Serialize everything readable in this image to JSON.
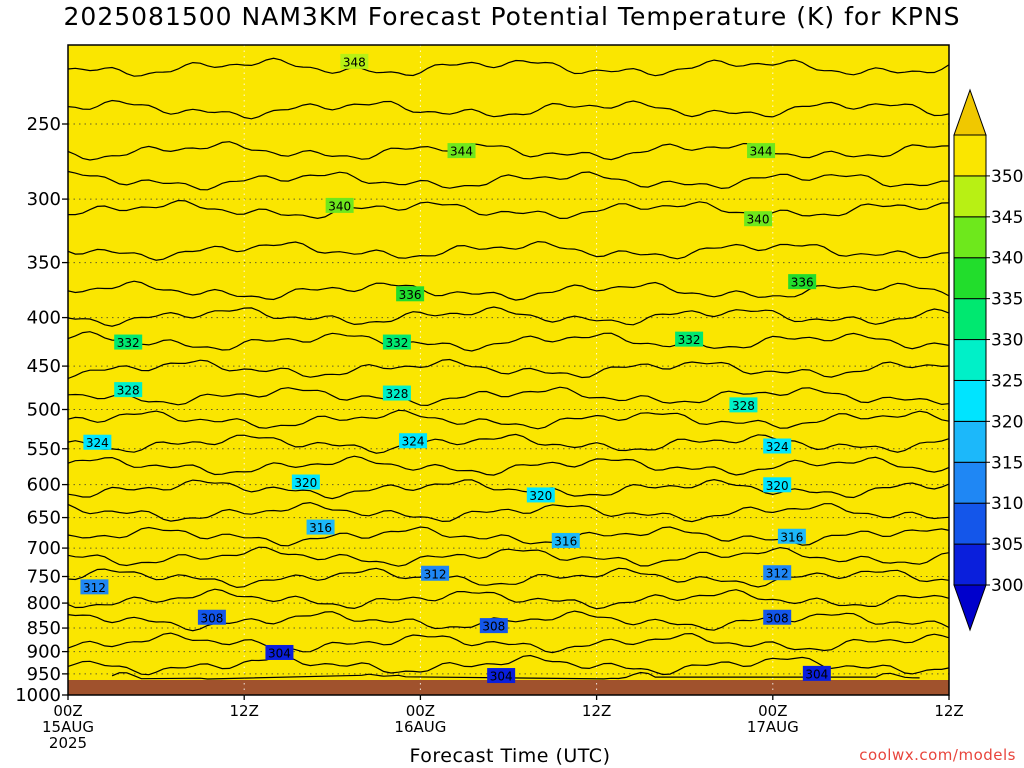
{
  "chart_data": {
    "type": "heatmap",
    "title": "2025081500 NAM3KM Forecast Potential Temperature (K) for KPNS",
    "xlabel": "Forecast Time (UTC)",
    "ylabel": "",
    "credit": "coolwx.com/models",
    "x_ticks": [
      {
        "hour": 0,
        "lines": [
          "00Z",
          "15AUG",
          "2025"
        ]
      },
      {
        "hour": 12,
        "lines": [
          "12Z"
        ]
      },
      {
        "hour": 24,
        "lines": [
          "00Z",
          "16AUG"
        ]
      },
      {
        "hour": 36,
        "lines": [
          "12Z"
        ]
      },
      {
        "hour": 48,
        "lines": [
          "00Z",
          "17AUG"
        ]
      },
      {
        "hour": 60,
        "lines": [
          "12Z"
        ]
      }
    ],
    "xlim": [
      0,
      60
    ],
    "y_scale": "log-pressure",
    "ylim": [
      1000,
      200
    ],
    "y_ticks": [
      250,
      300,
      350,
      400,
      450,
      500,
      550,
      600,
      650,
      700,
      750,
      800,
      850,
      900,
      950,
      1000
    ],
    "grid": true,
    "colorbar": {
      "placement": "right",
      "ticks": [
        300,
        305,
        310,
        315,
        320,
        325,
        330,
        335,
        340,
        345,
        350
      ],
      "colors": [
        "#0a1fdc",
        "#1456ea",
        "#1f87f4",
        "#1cb8fa",
        "#00e4ff",
        "#00f0c8",
        "#00e870",
        "#22dd2c",
        "#6ee81c",
        "#b8f014",
        "#fae600"
      ],
      "under_color": "#0000cc",
      "over_color": "#f0c800"
    },
    "ground_color": "#a0522d",
    "contour_interval": 2,
    "contour_labels": [
      {
        "value": 348,
        "hour": 19.5,
        "p": 215
      },
      {
        "value": 344,
        "hour": 26.8,
        "p": 267
      },
      {
        "value": 344,
        "hour": 47.2,
        "p": 267
      },
      {
        "value": 340,
        "hour": 18.5,
        "p": 305
      },
      {
        "value": 340,
        "hour": 47.0,
        "p": 315
      },
      {
        "value": 336,
        "hour": 23.3,
        "p": 378
      },
      {
        "value": 336,
        "hour": 50.0,
        "p": 367
      },
      {
        "value": 332,
        "hour": 4.1,
        "p": 425
      },
      {
        "value": 332,
        "hour": 22.4,
        "p": 425
      },
      {
        "value": 332,
        "hour": 42.3,
        "p": 422
      },
      {
        "value": 328,
        "hour": 4.1,
        "p": 477
      },
      {
        "value": 328,
        "hour": 22.4,
        "p": 481
      },
      {
        "value": 328,
        "hour": 46.0,
        "p": 495
      },
      {
        "value": 324,
        "hour": 2.0,
        "p": 542
      },
      {
        "value": 324,
        "hour": 23.5,
        "p": 540
      },
      {
        "value": 324,
        "hour": 48.3,
        "p": 547
      },
      {
        "value": 320,
        "hour": 16.2,
        "p": 597
      },
      {
        "value": 320,
        "hour": 32.2,
        "p": 616
      },
      {
        "value": 320,
        "hour": 48.3,
        "p": 601
      },
      {
        "value": 316,
        "hour": 17.2,
        "p": 666
      },
      {
        "value": 316,
        "hour": 33.9,
        "p": 688
      },
      {
        "value": 316,
        "hour": 49.3,
        "p": 681
      },
      {
        "value": 312,
        "hour": 1.8,
        "p": 770
      },
      {
        "value": 312,
        "hour": 25.0,
        "p": 745
      },
      {
        "value": 312,
        "hour": 48.3,
        "p": 744
      },
      {
        "value": 308,
        "hour": 9.8,
        "p": 829
      },
      {
        "value": 308,
        "hour": 29.0,
        "p": 846
      },
      {
        "value": 308,
        "hour": 48.3,
        "p": 829
      },
      {
        "value": 304,
        "hour": 14.4,
        "p": 903
      },
      {
        "value": 304,
        "hour": 29.5,
        "p": 955
      },
      {
        "value": 304,
        "hour": 51.0,
        "p": 950
      }
    ]
  }
}
